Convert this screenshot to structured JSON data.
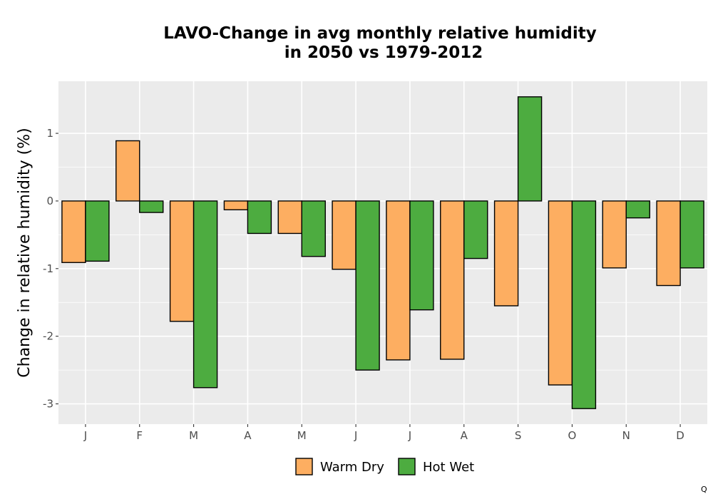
{
  "chart_data": {
    "type": "bar",
    "title_lines": [
      "LAVO-Change in avg monthly relative humidity",
      "in 2050 vs 1979-2012"
    ],
    "xlabel": "",
    "ylabel": "Change in relative humidity (%)",
    "categories": [
      "J",
      "F",
      "M",
      "A",
      "M",
      "J",
      "J",
      "A",
      "S",
      "O",
      "N",
      "D"
    ],
    "series": [
      {
        "name": "Warm Dry",
        "color": "#FDAE61",
        "values": [
          -0.91,
          0.89,
          -1.78,
          -0.13,
          -0.48,
          -1.01,
          -2.35,
          -2.34,
          -1.55,
          -2.72,
          -0.99,
          -1.25
        ]
      },
      {
        "name": "Hot Wet",
        "color": "#4DAC40",
        "values": [
          -0.89,
          -0.17,
          -2.76,
          -0.48,
          -0.82,
          -2.5,
          -1.61,
          -0.85,
          1.54,
          -3.07,
          -0.25,
          -0.99
        ]
      }
    ],
    "ylim": [
      -3.3,
      1.77
    ],
    "yticks": [
      1,
      0,
      -1,
      -2,
      -3
    ],
    "ytick_labels": [
      "1",
      "0",
      "-1",
      "-2",
      "-3"
    ],
    "grid": true,
    "legend_position": "bottom",
    "panel_background": "#EBEBEB",
    "grid_color": "#FFFFFF",
    "bar_outline_color": "#000000"
  },
  "corner_mark": "Q"
}
